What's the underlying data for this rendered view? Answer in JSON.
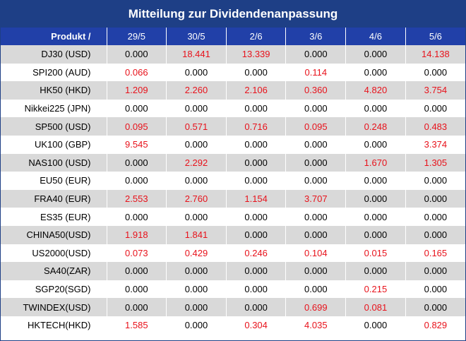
{
  "title": "Mitteilung zur Dividendenanpassung",
  "table": {
    "header_product": "Produkt /",
    "dates": [
      "29/5",
      "30/5",
      "2/6",
      "3/6",
      "4/6",
      "5/6"
    ],
    "rows": [
      {
        "product": "DJ30 (USD)",
        "values": [
          "0.000",
          "18.441",
          "13.339",
          "0.000",
          "0.000",
          "14.138"
        ]
      },
      {
        "product": "SPI200 (AUD)",
        "values": [
          "0.066",
          "0.000",
          "0.000",
          "0.114",
          "0.000",
          "0.000"
        ]
      },
      {
        "product": "HK50 (HKD)",
        "values": [
          "1.209",
          "2.260",
          "2.106",
          "0.360",
          "4.820",
          "3.754"
        ]
      },
      {
        "product": "Nikkei225 (JPN)",
        "values": [
          "0.000",
          "0.000",
          "0.000",
          "0.000",
          "0.000",
          "0.000"
        ]
      },
      {
        "product": "SP500 (USD)",
        "values": [
          "0.095",
          "0.571",
          "0.716",
          "0.095",
          "0.248",
          "0.483"
        ]
      },
      {
        "product": "UK100 (GBP)",
        "values": [
          "9.545",
          "0.000",
          "0.000",
          "0.000",
          "0.000",
          "3.374"
        ]
      },
      {
        "product": "NAS100 (USD)",
        "values": [
          "0.000",
          "2.292",
          "0.000",
          "0.000",
          "1.670",
          "1.305"
        ]
      },
      {
        "product": "EU50 (EUR)",
        "values": [
          "0.000",
          "0.000",
          "0.000",
          "0.000",
          "0.000",
          "0.000"
        ]
      },
      {
        "product": "FRA40 (EUR)",
        "values": [
          "2.553",
          "2.760",
          "1.154",
          "3.707",
          "0.000",
          "0.000"
        ]
      },
      {
        "product": "ES35 (EUR)",
        "values": [
          "0.000",
          "0.000",
          "0.000",
          "0.000",
          "0.000",
          "0.000"
        ]
      },
      {
        "product": "CHINA50(USD)",
        "values": [
          "1.918",
          "1.841",
          "0.000",
          "0.000",
          "0.000",
          "0.000"
        ]
      },
      {
        "product": "US2000(USD)",
        "values": [
          "0.073",
          "0.429",
          "0.246",
          "0.104",
          "0.015",
          "0.165"
        ]
      },
      {
        "product": "SA40(ZAR)",
        "values": [
          "0.000",
          "0.000",
          "0.000",
          "0.000",
          "0.000",
          "0.000"
        ]
      },
      {
        "product": "SGP20(SGD)",
        "values": [
          "0.000",
          "0.000",
          "0.000",
          "0.000",
          "0.215",
          "0.000"
        ]
      },
      {
        "product": "TWINDEX(USD)",
        "values": [
          "0.000",
          "0.000",
          "0.000",
          "0.699",
          "0.081",
          "0.000"
        ]
      },
      {
        "product": "HKTECH(HKD)",
        "values": [
          "1.585",
          "0.000",
          "0.304",
          "4.035",
          "0.000",
          "0.829"
        ]
      }
    ]
  },
  "colors": {
    "header_bg": "#1e3f86",
    "column_header_bg": "#2140a8",
    "stripe": "#d9d9d9",
    "positive_value": "#e8121b"
  }
}
